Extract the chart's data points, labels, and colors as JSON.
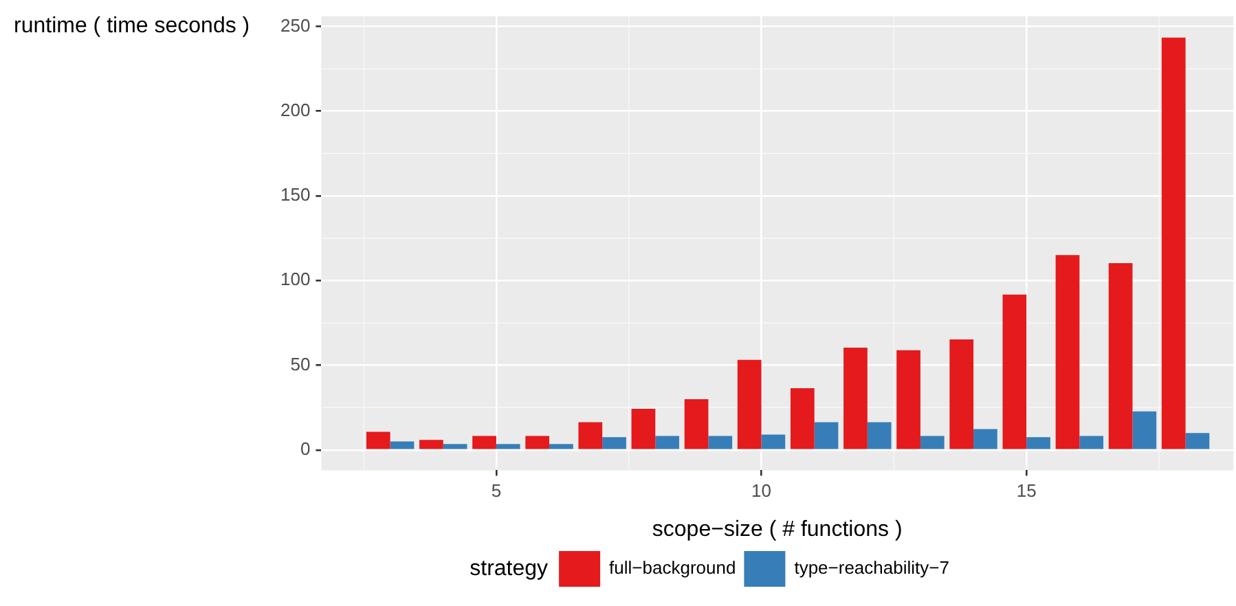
{
  "chart_data": {
    "type": "bar",
    "xlabel": "scope−size ( # functions )",
    "ylabel": "runtime ( time seconds )",
    "legend_title": "strategy",
    "x": [
      3,
      4,
      5,
      6,
      7,
      8,
      9,
      10,
      11,
      12,
      13,
      14,
      15,
      16,
      17,
      18
    ],
    "series": [
      {
        "name": "full−background",
        "color": "#e41a1c",
        "values": [
          10.7,
          5.9,
          8.2,
          8.2,
          16.3,
          24.3,
          29.9,
          53.2,
          36.4,
          60.4,
          58.8,
          65.2,
          91.7,
          115,
          110.2,
          243.4
        ]
      },
      {
        "name": "type−reachability−7",
        "color": "#377eb8",
        "values": [
          5,
          3.5,
          3.5,
          3.5,
          7.5,
          8.2,
          8.2,
          9,
          16.3,
          16.3,
          8.2,
          12.3,
          7.5,
          8.2,
          22.7,
          10
        ]
      }
    ],
    "xlim": [
      1.7,
      18.9
    ],
    "xticks": [
      5,
      10,
      15
    ],
    "ylim": [
      -12,
      256
    ],
    "yticks": [
      0,
      50,
      100,
      150,
      200,
      250
    ],
    "grid": true,
    "legend": "bottom"
  }
}
